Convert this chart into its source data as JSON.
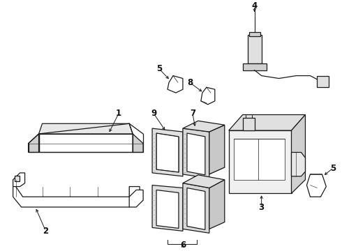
{
  "background_color": "#ffffff",
  "line_color": "#1a1a1a",
  "fig_width": 4.9,
  "fig_height": 3.6,
  "dpi": 100,
  "lw": 0.9,
  "gray_light": "#d0d0d0",
  "gray_mid": "#b8b8b8",
  "gray_fill": "#e8e8e8",
  "hatch_fill": "#c8c8c8"
}
